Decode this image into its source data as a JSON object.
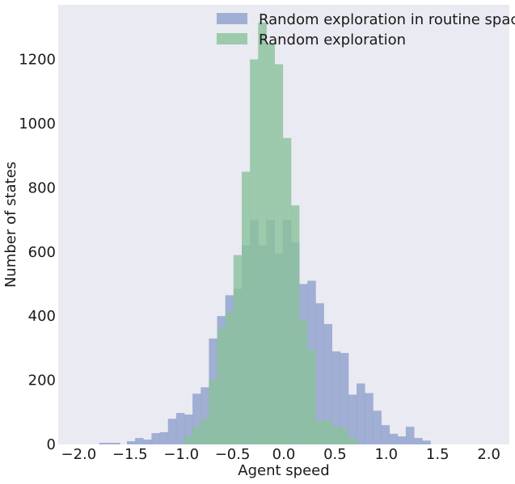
{
  "chart_data": {
    "type": "bar",
    "xlabel": "Agent speed",
    "ylabel": "Number of states",
    "xlim": [
      -2.2,
      2.2
    ],
    "ylim": [
      0,
      1370
    ],
    "grid": false,
    "legend_position": "top-right",
    "x_ticks": [
      -2.0,
      -1.5,
      -1.0,
      -0.5,
      0.0,
      0.5,
      1.0,
      1.5,
      2.0
    ],
    "x_tick_labels": [
      "−2.0",
      "−1.5",
      "−1.0",
      "−0.5",
      "0.0",
      "0.5",
      "1.0",
      "1.5",
      "2.0"
    ],
    "y_ticks": [
      0,
      200,
      400,
      600,
      800,
      1000,
      1200
    ],
    "y_tick_labels": [
      "0",
      "200",
      "400",
      "600",
      "800",
      "1000",
      "1200"
    ],
    "series": [
      {
        "name": "Random exploration in routine space",
        "color": "#8da0cb",
        "bins": [
          {
            "x0": -1.8,
            "x1": -1.7,
            "value": 5
          },
          {
            "x0": -1.7,
            "x1": -1.6,
            "value": 5
          },
          {
            "x0": -1.53,
            "x1": -1.45,
            "value": 10
          },
          {
            "x0": -1.45,
            "x1": -1.37,
            "value": 20
          },
          {
            "x0": -1.37,
            "x1": -1.29,
            "value": 15
          },
          {
            "x0": -1.29,
            "x1": -1.21,
            "value": 35
          },
          {
            "x0": -1.21,
            "x1": -1.13,
            "value": 38
          },
          {
            "x0": -1.13,
            "x1": -1.05,
            "value": 80
          },
          {
            "x0": -1.05,
            "x1": -0.97,
            "value": 98
          },
          {
            "x0": -0.97,
            "x1": -0.89,
            "value": 93
          },
          {
            "x0": -0.89,
            "x1": -0.81,
            "value": 158
          },
          {
            "x0": -0.81,
            "x1": -0.73,
            "value": 178
          },
          {
            "x0": -0.73,
            "x1": -0.65,
            "value": 330
          },
          {
            "x0": -0.65,
            "x1": -0.57,
            "value": 400
          },
          {
            "x0": -0.57,
            "x1": -0.49,
            "value": 465
          },
          {
            "x0": -0.49,
            "x1": -0.41,
            "value": 485
          },
          {
            "x0": -0.41,
            "x1": -0.33,
            "value": 620
          },
          {
            "x0": -0.33,
            "x1": -0.25,
            "value": 700
          },
          {
            "x0": -0.25,
            "x1": -0.17,
            "value": 620
          },
          {
            "x0": -0.17,
            "x1": -0.09,
            "value": 700
          },
          {
            "x0": -0.09,
            "x1": -0.01,
            "value": 595
          },
          {
            "x0": -0.01,
            "x1": 0.07,
            "value": 700
          },
          {
            "x0": 0.07,
            "x1": 0.15,
            "value": 630
          },
          {
            "x0": 0.15,
            "x1": 0.23,
            "value": 500
          },
          {
            "x0": 0.23,
            "x1": 0.31,
            "value": 510
          },
          {
            "x0": 0.31,
            "x1": 0.39,
            "value": 440
          },
          {
            "x0": 0.39,
            "x1": 0.47,
            "value": 375
          },
          {
            "x0": 0.47,
            "x1": 0.55,
            "value": 290
          },
          {
            "x0": 0.55,
            "x1": 0.63,
            "value": 285
          },
          {
            "x0": 0.63,
            "x1": 0.71,
            "value": 155
          },
          {
            "x0": 0.71,
            "x1": 0.79,
            "value": 190
          },
          {
            "x0": 0.79,
            "x1": 0.87,
            "value": 160
          },
          {
            "x0": 0.87,
            "x1": 0.95,
            "value": 105
          },
          {
            "x0": 0.95,
            "x1": 1.03,
            "value": 60
          },
          {
            "x0": 1.03,
            "x1": 1.11,
            "value": 33
          },
          {
            "x0": 1.11,
            "x1": 1.19,
            "value": 25
          },
          {
            "x0": 1.19,
            "x1": 1.27,
            "value": 55
          },
          {
            "x0": 1.27,
            "x1": 1.35,
            "value": 20
          },
          {
            "x0": 1.35,
            "x1": 1.43,
            "value": 12
          }
        ]
      },
      {
        "name": "Random exploration",
        "color": "#8ac29b",
        "bins": [
          {
            "x0": -0.97,
            "x1": -0.89,
            "value": 25
          },
          {
            "x0": -0.89,
            "x1": -0.81,
            "value": 55
          },
          {
            "x0": -0.81,
            "x1": -0.73,
            "value": 80
          },
          {
            "x0": -0.73,
            "x1": -0.65,
            "value": 200
          },
          {
            "x0": -0.65,
            "x1": -0.57,
            "value": 360
          },
          {
            "x0": -0.57,
            "x1": -0.49,
            "value": 410
          },
          {
            "x0": -0.49,
            "x1": -0.41,
            "value": 590
          },
          {
            "x0": -0.41,
            "x1": -0.33,
            "value": 850
          },
          {
            "x0": -0.33,
            "x1": -0.25,
            "value": 1200
          },
          {
            "x0": -0.25,
            "x1": -0.17,
            "value": 1315
          },
          {
            "x0": -0.17,
            "x1": -0.09,
            "value": 1250
          },
          {
            "x0": -0.09,
            "x1": -0.01,
            "value": 1185
          },
          {
            "x0": -0.01,
            "x1": 0.07,
            "value": 955
          },
          {
            "x0": 0.07,
            "x1": 0.15,
            "value": 745
          },
          {
            "x0": 0.15,
            "x1": 0.23,
            "value": 385
          },
          {
            "x0": 0.23,
            "x1": 0.31,
            "value": 295
          },
          {
            "x0": 0.31,
            "x1": 0.39,
            "value": 75
          },
          {
            "x0": 0.39,
            "x1": 0.47,
            "value": 75
          },
          {
            "x0": 0.47,
            "x1": 0.55,
            "value": 55
          },
          {
            "x0": 0.55,
            "x1": 0.63,
            "value": 50
          },
          {
            "x0": 0.63,
            "x1": 0.71,
            "value": 20
          }
        ]
      }
    ]
  }
}
